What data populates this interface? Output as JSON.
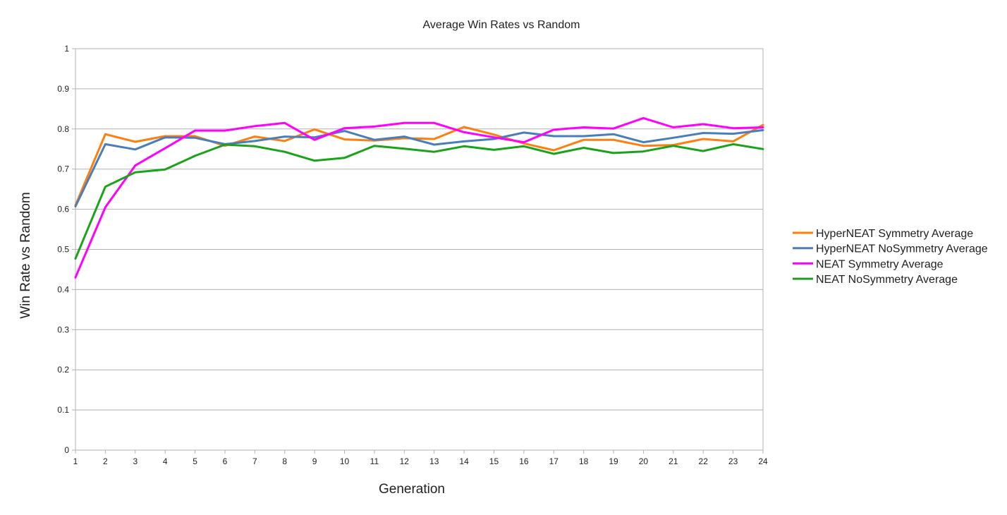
{
  "chart_data": {
    "type": "line",
    "title": "Average Win Rates vs Random",
    "xlabel": "Generation",
    "ylabel": "Win Rate vs Random",
    "x": [
      1,
      2,
      3,
      4,
      5,
      6,
      7,
      8,
      9,
      10,
      11,
      12,
      13,
      14,
      15,
      16,
      17,
      18,
      19,
      20,
      21,
      22,
      23,
      24
    ],
    "x_tick_labels": [
      "1",
      "2",
      "3",
      "4",
      "5",
      "6",
      "7",
      "8",
      "9",
      "10",
      "11",
      "12",
      "13",
      "14",
      "15",
      "16",
      "17",
      "18",
      "19",
      "20",
      "21",
      "22",
      "23",
      "24"
    ],
    "ylim": [
      0,
      1
    ],
    "y_tick_labels": [
      "0",
      "0.1",
      "0.2",
      "0.3",
      "0.4",
      "0.5",
      "0.6",
      "0.7",
      "0.8",
      "0.9",
      "1"
    ],
    "y_ticks": [
      0,
      0.1,
      0.2,
      0.3,
      0.4,
      0.5,
      0.6,
      0.7,
      0.8,
      0.9,
      1
    ],
    "grid": true,
    "legend_position": "right",
    "series": [
      {
        "name": "HyperNEAT Symmetry Average",
        "color": "#ff7f0e",
        "values": [
          0.61,
          0.787,
          0.768,
          0.782,
          0.782,
          0.758,
          0.781,
          0.77,
          0.799,
          0.774,
          0.771,
          0.777,
          0.775,
          0.805,
          0.786,
          0.764,
          0.747,
          0.773,
          0.773,
          0.758,
          0.76,
          0.775,
          0.769,
          0.81
        ]
      },
      {
        "name": "HyperNEAT NoSymmetry Average",
        "color": "#4a7ebb",
        "values": [
          0.607,
          0.762,
          0.749,
          0.779,
          0.778,
          0.762,
          0.77,
          0.781,
          0.779,
          0.795,
          0.773,
          0.781,
          0.761,
          0.769,
          0.775,
          0.791,
          0.782,
          0.782,
          0.787,
          0.767,
          0.778,
          0.79,
          0.788,
          0.797
        ]
      },
      {
        "name": "NEAT Symmetry Average",
        "color": "#ff00ff",
        "values": [
          0.43,
          0.605,
          0.709,
          0.752,
          0.796,
          0.796,
          0.807,
          0.815,
          0.773,
          0.802,
          0.806,
          0.815,
          0.815,
          0.792,
          0.779,
          0.767,
          0.798,
          0.804,
          0.801,
          0.827,
          0.804,
          0.812,
          0.802,
          0.804
        ]
      },
      {
        "name": "NEAT NoSymmetry Average",
        "color": "#1aa31a",
        "values": [
          0.477,
          0.656,
          0.692,
          0.699,
          0.733,
          0.761,
          0.757,
          0.743,
          0.721,
          0.728,
          0.758,
          0.751,
          0.743,
          0.757,
          0.748,
          0.757,
          0.738,
          0.753,
          0.74,
          0.744,
          0.758,
          0.745,
          0.762,
          0.75
        ]
      }
    ]
  }
}
